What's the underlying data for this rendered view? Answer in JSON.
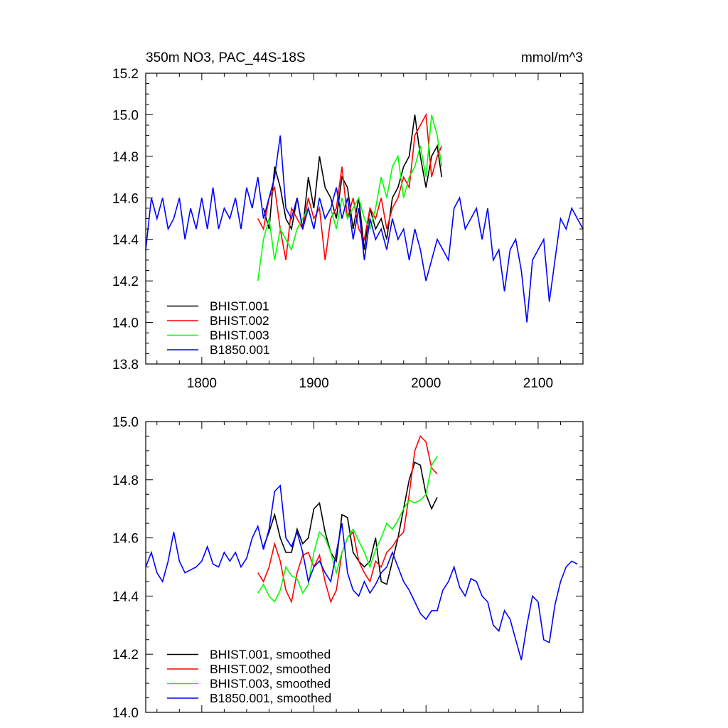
{
  "chart_data": [
    {
      "type": "line",
      "title": "350m NO3, PAC_44S-18S",
      "units": "mmol/m^3",
      "xlim": [
        1750,
        2140
      ],
      "ylim": [
        13.8,
        15.2
      ],
      "x_ticks": [
        1800,
        1900,
        2000,
        2100
      ],
      "y_ticks": [
        13.8,
        14.0,
        14.2,
        14.4,
        14.6,
        14.8,
        15.0,
        15.2
      ],
      "x_tick_labels": [
        "1800",
        "1900",
        "2000",
        "2100"
      ],
      "y_tick_labels": [
        "13.8",
        "14.0",
        "14.2",
        "14.4",
        "14.6",
        "14.8",
        "15.0",
        "15.2"
      ],
      "legend_position": "bottom-left",
      "grid": false,
      "series": [
        {
          "name": "BHIST.001",
          "color": "#000000",
          "x": [
            1855,
            1860,
            1865,
            1870,
            1875,
            1880,
            1885,
            1890,
            1895,
            1900,
            1905,
            1910,
            1915,
            1920,
            1925,
            1930,
            1935,
            1940,
            1945,
            1950,
            1955,
            1960,
            1965,
            1970,
            1975,
            1980,
            1985,
            1990,
            1995,
            2000,
            2005,
            2010,
            2014
          ],
          "values": [
            14.55,
            14.45,
            14.75,
            14.65,
            14.5,
            14.45,
            14.6,
            14.45,
            14.7,
            14.55,
            14.8,
            14.65,
            14.6,
            14.5,
            14.7,
            14.65,
            14.45,
            14.6,
            14.35,
            14.55,
            14.45,
            14.5,
            14.4,
            14.6,
            14.65,
            14.75,
            14.8,
            15.0,
            14.8,
            14.65,
            14.8,
            14.85,
            14.7
          ]
        },
        {
          "name": "BHIST.002",
          "color": "#ff0000",
          "x": [
            1850,
            1855,
            1860,
            1865,
            1870,
            1875,
            1880,
            1885,
            1890,
            1895,
            1900,
            1905,
            1910,
            1915,
            1920,
            1925,
            1930,
            1935,
            1940,
            1945,
            1950,
            1955,
            1960,
            1965,
            1970,
            1975,
            1980,
            1985,
            1990,
            1995,
            2000,
            2005,
            2010,
            2014
          ],
          "values": [
            14.5,
            14.45,
            14.6,
            14.65,
            14.45,
            14.3,
            14.55,
            14.5,
            14.45,
            14.6,
            14.5,
            14.55,
            14.3,
            14.5,
            14.55,
            14.75,
            14.5,
            14.6,
            14.45,
            14.4,
            14.55,
            14.5,
            14.6,
            14.45,
            14.55,
            14.6,
            14.7,
            14.65,
            14.9,
            14.95,
            15.0,
            14.7,
            14.8,
            14.85
          ]
        },
        {
          "name": "BHIST.003",
          "color": "#00ff00",
          "x": [
            1850,
            1855,
            1860,
            1865,
            1870,
            1875,
            1880,
            1885,
            1890,
            1895,
            1900,
            1905,
            1910,
            1915,
            1920,
            1925,
            1930,
            1935,
            1940,
            1945,
            1950,
            1955,
            1960,
            1965,
            1970,
            1975,
            1980,
            1985,
            1990,
            1995,
            2000,
            2005,
            2010,
            2014
          ],
          "values": [
            14.2,
            14.4,
            14.5,
            14.3,
            14.45,
            14.4,
            14.35,
            14.45,
            14.5,
            14.55,
            14.45,
            14.6,
            14.5,
            14.55,
            14.45,
            14.6,
            14.5,
            14.55,
            14.6,
            14.5,
            14.45,
            14.55,
            14.7,
            14.6,
            14.75,
            14.8,
            14.6,
            14.7,
            14.75,
            14.85,
            14.7,
            15.0,
            14.9,
            14.75
          ]
        },
        {
          "name": "B1850.001",
          "color": "#0000ff",
          "x": [
            1750,
            1755,
            1760,
            1765,
            1770,
            1775,
            1780,
            1785,
            1790,
            1795,
            1800,
            1805,
            1810,
            1815,
            1820,
            1825,
            1830,
            1835,
            1840,
            1845,
            1850,
            1855,
            1860,
            1865,
            1870,
            1875,
            1880,
            1885,
            1890,
            1895,
            1900,
            1905,
            1910,
            1915,
            1920,
            1925,
            1930,
            1935,
            1940,
            1945,
            1950,
            1955,
            1960,
            1965,
            1970,
            1975,
            1980,
            1985,
            1990,
            1995,
            2000,
            2005,
            2010,
            2015,
            2020,
            2025,
            2030,
            2035,
            2040,
            2045,
            2050,
            2055,
            2060,
            2065,
            2070,
            2075,
            2080,
            2085,
            2090,
            2095,
            2100,
            2105,
            2110,
            2115,
            2120,
            2125,
            2130,
            2135,
            2140
          ],
          "values": [
            14.35,
            14.6,
            14.5,
            14.6,
            14.45,
            14.5,
            14.6,
            14.4,
            14.55,
            14.45,
            14.6,
            14.45,
            14.65,
            14.45,
            14.55,
            14.5,
            14.6,
            14.45,
            14.65,
            14.55,
            14.7,
            14.5,
            14.6,
            14.7,
            14.9,
            14.55,
            14.5,
            14.6,
            14.45,
            14.55,
            14.45,
            14.6,
            14.5,
            14.55,
            14.65,
            14.5,
            14.6,
            14.4,
            14.55,
            14.3,
            14.5,
            14.4,
            14.45,
            14.35,
            14.5,
            14.4,
            14.45,
            14.3,
            14.45,
            14.35,
            14.2,
            14.3,
            14.4,
            14.35,
            14.3,
            14.55,
            14.6,
            14.45,
            14.5,
            14.55,
            14.4,
            14.55,
            14.3,
            14.35,
            14.15,
            14.35,
            14.4,
            14.25,
            14.0,
            14.3,
            14.35,
            14.4,
            14.1,
            14.3,
            14.5,
            14.45,
            14.55,
            14.5,
            14.45
          ]
        }
      ]
    },
    {
      "type": "line",
      "xlim": [
        1750,
        2140
      ],
      "ylim": [
        14.0,
        15.0
      ],
      "x_ticks": [
        1800,
        1900,
        2000,
        2100
      ],
      "y_ticks": [
        14.0,
        14.2,
        14.4,
        14.6,
        14.8,
        15.0
      ],
      "y_tick_labels": [
        "14.0",
        "14.2",
        "14.4",
        "14.6",
        "14.8",
        "15.0"
      ],
      "legend_position": "bottom-left",
      "grid": false,
      "series": [
        {
          "name": "BHIST.001, smoothed",
          "color": "#000000",
          "x": [
            1855,
            1860,
            1865,
            1870,
            1875,
            1880,
            1885,
            1890,
            1895,
            1900,
            1905,
            1910,
            1915,
            1920,
            1925,
            1930,
            1935,
            1940,
            1945,
            1950,
            1955,
            1960,
            1965,
            1970,
            1975,
            1980,
            1985,
            1990,
            1995,
            2000,
            2005,
            2010
          ],
          "values": [
            14.57,
            14.62,
            14.68,
            14.6,
            14.55,
            14.55,
            14.63,
            14.58,
            14.6,
            14.7,
            14.72,
            14.62,
            14.55,
            14.52,
            14.68,
            14.67,
            14.55,
            14.52,
            14.5,
            14.52,
            14.6,
            14.45,
            14.44,
            14.52,
            14.6,
            14.7,
            14.8,
            14.86,
            14.85,
            14.75,
            14.7,
            14.74
          ]
        },
        {
          "name": "BHIST.002, smoothed",
          "color": "#ff0000",
          "x": [
            1850,
            1855,
            1860,
            1865,
            1870,
            1875,
            1880,
            1885,
            1890,
            1895,
            1900,
            1905,
            1910,
            1915,
            1920,
            1925,
            1930,
            1935,
            1940,
            1945,
            1950,
            1955,
            1960,
            1965,
            1970,
            1975,
            1980,
            1985,
            1990,
            1995,
            2000,
            2005,
            2010
          ],
          "values": [
            14.48,
            14.45,
            14.5,
            14.58,
            14.52,
            14.42,
            14.38,
            14.48,
            14.54,
            14.55,
            14.5,
            14.54,
            14.45,
            14.38,
            14.42,
            14.55,
            14.6,
            14.62,
            14.52,
            14.48,
            14.45,
            14.52,
            14.5,
            14.55,
            14.57,
            14.6,
            14.62,
            14.75,
            14.9,
            14.95,
            14.93,
            14.84,
            14.82
          ]
        },
        {
          "name": "BHIST.003, smoothed",
          "color": "#00ff00",
          "x": [
            1850,
            1855,
            1860,
            1865,
            1870,
            1875,
            1880,
            1885,
            1890,
            1895,
            1900,
            1905,
            1910,
            1915,
            1920,
            1925,
            1930,
            1935,
            1940,
            1945,
            1950,
            1955,
            1960,
            1965,
            1970,
            1975,
            1980,
            1985,
            1990,
            1995,
            2000,
            2005,
            2010
          ],
          "values": [
            14.41,
            14.44,
            14.4,
            14.38,
            14.42,
            14.5,
            14.47,
            14.46,
            14.41,
            14.44,
            14.55,
            14.62,
            14.6,
            14.55,
            14.48,
            14.55,
            14.6,
            14.63,
            14.59,
            14.55,
            14.5,
            14.56,
            14.6,
            14.65,
            14.63,
            14.66,
            14.7,
            14.73,
            14.72,
            14.73,
            14.75,
            14.85,
            14.88
          ]
        },
        {
          "name": "B1850.001, smoothed",
          "color": "#0000ff",
          "x": [
            1750,
            1755,
            1760,
            1765,
            1770,
            1775,
            1780,
            1785,
            1790,
            1795,
            1800,
            1805,
            1810,
            1815,
            1820,
            1825,
            1830,
            1835,
            1840,
            1845,
            1850,
            1855,
            1860,
            1865,
            1870,
            1875,
            1880,
            1885,
            1890,
            1895,
            1900,
            1905,
            1910,
            1915,
            1920,
            1925,
            1930,
            1935,
            1940,
            1945,
            1950,
            1955,
            1960,
            1965,
            1970,
            1975,
            1980,
            1985,
            1990,
            1995,
            2000,
            2005,
            2010,
            2015,
            2020,
            2025,
            2030,
            2035,
            2040,
            2045,
            2050,
            2055,
            2060,
            2065,
            2070,
            2075,
            2080,
            2085,
            2090,
            2095,
            2100,
            2105,
            2110,
            2115,
            2120,
            2125,
            2130,
            2135
          ],
          "values": [
            14.5,
            14.55,
            14.48,
            14.45,
            14.52,
            14.62,
            14.52,
            14.48,
            14.49,
            14.5,
            14.52,
            14.57,
            14.51,
            14.5,
            14.55,
            14.52,
            14.55,
            14.5,
            14.53,
            14.6,
            14.64,
            14.56,
            14.63,
            14.76,
            14.78,
            14.6,
            14.57,
            14.62,
            14.55,
            14.45,
            14.5,
            14.52,
            14.48,
            14.45,
            14.55,
            14.65,
            14.48,
            14.42,
            14.4,
            14.45,
            14.41,
            14.44,
            14.48,
            14.5,
            14.55,
            14.5,
            14.45,
            14.42,
            14.38,
            14.34,
            14.32,
            14.35,
            14.35,
            14.42,
            14.45,
            14.5,
            14.43,
            14.4,
            14.46,
            14.45,
            14.4,
            14.38,
            14.3,
            14.28,
            14.35,
            14.32,
            14.25,
            14.18,
            14.3,
            14.4,
            14.38,
            14.25,
            14.24,
            14.37,
            14.45,
            14.5,
            14.52,
            14.51
          ]
        }
      ]
    }
  ],
  "colors": {
    "axis": "#000000",
    "background": "#ffffff"
  }
}
